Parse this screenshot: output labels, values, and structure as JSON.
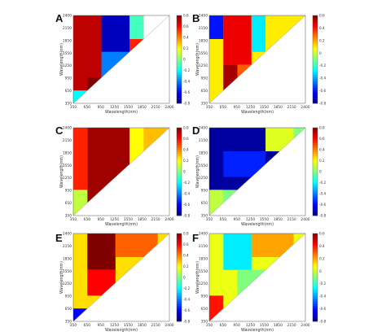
{
  "chart_data": [
    {
      "panel": "A",
      "type": "heatmap",
      "xlabel": "Wavelength(nm)",
      "ylabel": "Wavelength(nm)",
      "x_ticks": [
        "350",
        "650",
        "950",
        "1250",
        "1550",
        "1850",
        "2150",
        "2400"
      ],
      "y_ticks": [
        "2400",
        "2150",
        "1850",
        "1550",
        "1250",
        "950",
        "650",
        "350"
      ],
      "colorbar_ticks": [
        "0.8",
        "0.6",
        "0.4",
        "0.2",
        "0",
        "-0.2",
        "-0.4",
        "-0.6",
        "-0.8"
      ],
      "colorbar_range": [
        -0.8,
        0.8
      ],
      "x_range": [
        350,
        2400
      ],
      "y_range": [
        350,
        2400
      ],
      "regions": [
        {
          "x": [
            350,
            1850
          ],
          "y": [
            350,
            2400
          ],
          "v": 0.55
        },
        {
          "x": [
            350,
            950
          ],
          "y": [
            350,
            2400
          ],
          "v": 0.7
        },
        {
          "x": [
            950,
            1550
          ],
          "y": [
            1550,
            2400
          ],
          "v": -0.7
        },
        {
          "x": [
            950,
            1550
          ],
          "y": [
            950,
            1550
          ],
          "v": -0.4
        },
        {
          "x": [
            1550,
            1850
          ],
          "y": [
            1850,
            2400
          ],
          "v": -0.1
        },
        {
          "x": [
            350,
            650
          ],
          "y": [
            350,
            650
          ],
          "v": -0.2
        },
        {
          "x": [
            650,
            950
          ],
          "y": [
            650,
            950
          ],
          "v": 0.9
        }
      ]
    },
    {
      "panel": "B",
      "type": "heatmap",
      "xlabel": "Wavelength(nm)",
      "ylabel": "Wavelength(nm)",
      "x_ticks": [
        "350",
        "650",
        "950",
        "1250",
        "1550",
        "1850",
        "2150",
        "2400"
      ],
      "y_ticks": [
        "2400",
        "2150",
        "1850",
        "1550",
        "1250",
        "950",
        "650",
        "350"
      ],
      "colorbar_ticks": [
        "0.6",
        "0.4",
        "0.2",
        "0",
        "-0.2",
        "-0.4",
        "-0.6",
        "-0.8"
      ],
      "colorbar_range": [
        -0.8,
        0.6
      ],
      "x_range": [
        350,
        2400
      ],
      "y_range": [
        350,
        2400
      ],
      "regions": [
        {
          "x": [
            350,
            2400
          ],
          "y": [
            350,
            2400
          ],
          "v": 0.1
        },
        {
          "x": [
            650,
            1250
          ],
          "y": [
            1250,
            2400
          ],
          "v": 0.45
        },
        {
          "x": [
            650,
            950
          ],
          "y": [
            650,
            1250
          ],
          "v": 0.55
        },
        {
          "x": [
            350,
            650
          ],
          "y": [
            1850,
            2400
          ],
          "v": -0.6
        },
        {
          "x": [
            1250,
            1550
          ],
          "y": [
            1550,
            2400
          ],
          "v": -0.3
        },
        {
          "x": [
            950,
            1250
          ],
          "y": [
            950,
            1250
          ],
          "v": 0.3
        }
      ]
    },
    {
      "panel": "C",
      "type": "heatmap",
      "xlabel": "Wavelength(nm)",
      "ylabel": "Wavelength(nm)",
      "x_ticks": [
        "350",
        "650",
        "950",
        "1250",
        "1550",
        "1850",
        "2150",
        "2400"
      ],
      "y_ticks": [
        "2400",
        "2150",
        "1850",
        "1550",
        "1250",
        "950",
        "650",
        "350"
      ],
      "colorbar_ticks": [
        "0.8",
        "0.6",
        "0.4",
        "0.2",
        "0",
        "-0.2",
        "-0.4",
        "-0.6",
        "-0.8"
      ],
      "colorbar_range": [
        -0.8,
        0.8
      ],
      "x_range": [
        350,
        2400
      ],
      "y_range": [
        350,
        2400
      ],
      "regions": [
        {
          "x": [
            350,
            2400
          ],
          "y": [
            350,
            2400
          ],
          "v": 0.3
        },
        {
          "x": [
            650,
            1550
          ],
          "y": [
            650,
            2400
          ],
          "v": 0.75
        },
        {
          "x": [
            350,
            650
          ],
          "y": [
            950,
            2400
          ],
          "v": 0.55
        },
        {
          "x": [
            1550,
            1850
          ],
          "y": [
            1550,
            2400
          ],
          "v": 0.2
        },
        {
          "x": [
            350,
            650
          ],
          "y": [
            350,
            950
          ],
          "v": 0.1
        }
      ]
    },
    {
      "panel": "D",
      "type": "heatmap",
      "xlabel": "Wavelength(nm)",
      "ylabel": "Wavelength(nm)",
      "x_ticks": [
        "350",
        "650",
        "950",
        "1250",
        "1550",
        "1850",
        "2150",
        "2400"
      ],
      "y_ticks": [
        "2400",
        "2150",
        "1850",
        "1550",
        "1250",
        "950",
        "650",
        "350"
      ],
      "colorbar_ticks": [
        "0.8",
        "0.6",
        "0.4",
        "0.2",
        "0",
        "-0.2",
        "-0.4",
        "-0.6",
        "-0.8"
      ],
      "colorbar_range": [
        -0.8,
        0.8
      ],
      "x_range": [
        350,
        2400
      ],
      "y_range": [
        350,
        2400
      ],
      "regions": [
        {
          "x": [
            350,
            2400
          ],
          "y": [
            350,
            2400
          ],
          "v": 0.0
        },
        {
          "x": [
            350,
            1850
          ],
          "y": [
            950,
            2400
          ],
          "v": -0.75
        },
        {
          "x": [
            650,
            1550
          ],
          "y": [
            1250,
            1850
          ],
          "v": -0.55
        },
        {
          "x": [
            350,
            650
          ],
          "y": [
            350,
            950
          ],
          "v": 0.1
        },
        {
          "x": [
            1550,
            2150
          ],
          "y": [
            1850,
            2400
          ],
          "v": 0.15
        }
      ]
    },
    {
      "panel": "E",
      "type": "heatmap",
      "xlabel": "Wavelength(nm)",
      "ylabel": "Wavelength(nm)",
      "x_ticks": [
        "350",
        "650",
        "950",
        "1250",
        "1550",
        "1850",
        "2150",
        "2400"
      ],
      "y_ticks": [
        "2400",
        "2150",
        "1850",
        "1550",
        "1250",
        "950",
        "650",
        "350"
      ],
      "colorbar_ticks": [
        "0.8",
        "0.6",
        "0.4",
        "0.2",
        "0",
        "-0.2",
        "-0.4",
        "-0.6",
        "-0.8"
      ],
      "colorbar_range": [
        -0.8,
        0.8
      ],
      "x_range": [
        350,
        2400
      ],
      "y_range": [
        350,
        2400
      ],
      "regions": [
        {
          "x": [
            350,
            2400
          ],
          "y": [
            350,
            2400
          ],
          "v": 0.25
        },
        {
          "x": [
            650,
            1250
          ],
          "y": [
            1550,
            2400
          ],
          "v": 0.8
        },
        {
          "x": [
            650,
            1250
          ],
          "y": [
            950,
            1550
          ],
          "v": 0.6
        },
        {
          "x": [
            350,
            650
          ],
          "y": [
            350,
            650
          ],
          "v": -0.6
        },
        {
          "x": [
            1250,
            2150
          ],
          "y": [
            1850,
            2400
          ],
          "v": 0.45
        }
      ]
    },
    {
      "panel": "F",
      "type": "heatmap",
      "xlabel": "Wavelength(nm)",
      "ylabel": "Wavelength(nm)",
      "x_ticks": [
        "350",
        "650",
        "950",
        "1250",
        "1550",
        "1850",
        "2150",
        "2400"
      ],
      "y_ticks": [
        "2400",
        "2150",
        "1850",
        "1550",
        "1250",
        "950",
        "650",
        "350"
      ],
      "colorbar_ticks": [
        "0.6",
        "0.4",
        "0.2",
        "0",
        "-0.2",
        "-0.4",
        "-0.6",
        "-0.8"
      ],
      "colorbar_range": [
        -0.8,
        0.6
      ],
      "x_range": [
        350,
        2400
      ],
      "y_range": [
        350,
        2400
      ],
      "regions": [
        {
          "x": [
            350,
            2400
          ],
          "y": [
            350,
            2400
          ],
          "v": 0.05
        },
        {
          "x": [
            650,
            1250
          ],
          "y": [
            1550,
            2400
          ],
          "v": -0.3
        },
        {
          "x": [
            950,
            1550
          ],
          "y": [
            950,
            1550
          ],
          "v": -0.1
        },
        {
          "x": [
            350,
            650
          ],
          "y": [
            350,
            950
          ],
          "v": 0.4
        },
        {
          "x": [
            1250,
            2150
          ],
          "y": [
            1850,
            2400
          ],
          "v": 0.2
        }
      ]
    }
  ]
}
